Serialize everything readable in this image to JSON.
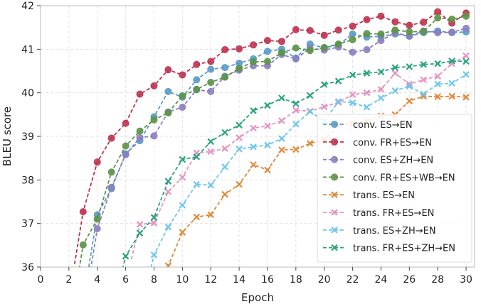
{
  "chart_data": {
    "type": "line",
    "xlabel": "Epoch",
    "ylabel": "BLEU score",
    "xlim": [
      0,
      30.6
    ],
    "ylim": [
      36,
      42
    ],
    "xticks": [
      0,
      2,
      4,
      6,
      8,
      10,
      12,
      14,
      16,
      18,
      20,
      22,
      24,
      26,
      28,
      30
    ],
    "yticks": [
      36,
      37,
      38,
      39,
      40,
      41,
      42
    ],
    "grid": true,
    "legend_position": "lower-right",
    "series": [
      {
        "name": "conv. ES→EN",
        "color": "#5a9bc8",
        "marker": "circle",
        "x": [
          4,
          5,
          6,
          7,
          8,
          9,
          10,
          11,
          12,
          13,
          14,
          15,
          16,
          17,
          18,
          19,
          20,
          21,
          22,
          23,
          24,
          25,
          26,
          27,
          28,
          29,
          30
        ],
        "y": [
          37.2,
          37.8,
          38.6,
          38.9,
          39.45,
          40.03,
          39.9,
          40.3,
          40.54,
          40.58,
          40.68,
          40.78,
          40.95,
          41.0,
          40.8,
          41.12,
          41.03,
          41.1,
          41.35,
          41.28,
          41.3,
          41.35,
          41.3,
          41.38,
          41.42,
          41.38,
          41.4
        ]
      },
      {
        "name": "conv. FR+ES→EN",
        "color": "#c0334f",
        "marker": "circle",
        "x": [
          3,
          4,
          5,
          6,
          7,
          8,
          9,
          10,
          11,
          12,
          13,
          14,
          15,
          16,
          17,
          18,
          19,
          20,
          21,
          22,
          23,
          24,
          25,
          26,
          27,
          28,
          29,
          30
        ],
        "y": [
          37.27,
          38.41,
          38.96,
          39.3,
          39.97,
          40.16,
          40.53,
          40.41,
          40.65,
          40.72,
          40.99,
          41.01,
          41.1,
          41.2,
          41.18,
          41.45,
          41.43,
          41.32,
          41.44,
          41.53,
          41.68,
          41.76,
          41.63,
          41.55,
          41.62,
          41.86,
          41.6,
          41.83
        ]
      },
      {
        "name": "conv. ES+ZH→EN",
        "color": "#8b7fc0",
        "marker": "circle",
        "x": [
          4,
          5,
          6,
          7,
          8,
          9,
          10,
          11,
          12,
          13,
          14,
          15,
          16,
          17,
          18,
          19,
          20,
          21,
          22,
          23,
          24,
          25,
          26,
          27,
          28,
          29,
          30
        ],
        "y": [
          36.88,
          37.83,
          38.58,
          38.97,
          39.01,
          39.56,
          39.67,
          40.07,
          40.03,
          40.38,
          40.52,
          40.62,
          40.62,
          40.88,
          40.78,
          41.02,
          40.98,
          41.05,
          40.93,
          40.99,
          41.2,
          41.38,
          41.3,
          41.42,
          41.38,
          41.39,
          41.48
        ]
      },
      {
        "name": "conv. FR+ES+WB→EN",
        "color": "#5d9448",
        "marker": "circle",
        "x": [
          3,
          4,
          5,
          6,
          7,
          8,
          9,
          10,
          11,
          12,
          13,
          14,
          15,
          16,
          17,
          18,
          19,
          20,
          21,
          22,
          23,
          24,
          25,
          26,
          27,
          28,
          29,
          30
        ],
        "y": [
          36.51,
          37.1,
          38.18,
          38.78,
          39.12,
          39.38,
          39.54,
          39.93,
          40.08,
          40.24,
          40.36,
          40.56,
          40.71,
          40.72,
          40.92,
          41.03,
          40.97,
          41.04,
          41.12,
          41.22,
          41.36,
          41.35,
          41.44,
          41.4,
          41.41,
          41.72,
          41.69,
          41.76
        ]
      },
      {
        "name": "trans. ES→EN",
        "color": "#e08a3c",
        "marker": "x",
        "x": [
          9,
          10,
          11,
          12,
          13,
          14,
          15,
          16,
          17,
          18,
          19,
          20,
          21,
          22,
          23,
          24,
          25,
          26,
          27,
          28,
          29,
          30
        ],
        "y": [
          36.03,
          36.8,
          37.15,
          37.2,
          37.67,
          37.9,
          38.35,
          38.23,
          38.69,
          38.7,
          38.84,
          38.93,
          39.25,
          39.29,
          39.34,
          39.47,
          39.5,
          39.81,
          39.92,
          39.91,
          39.92,
          39.9
        ]
      },
      {
        "name": "trans. FR+ES→EN",
        "color": "#e495c2",
        "marker": "x",
        "x": [
          7,
          8,
          9,
          10,
          11,
          12,
          13,
          14,
          15,
          16,
          17,
          18,
          19,
          20,
          21,
          22,
          23,
          24,
          25,
          26,
          27,
          28,
          29,
          30
        ],
        "y": [
          36.98,
          37.01,
          37.73,
          38.06,
          38.62,
          38.65,
          38.72,
          38.97,
          39.19,
          39.24,
          39.36,
          39.6,
          39.58,
          39.68,
          39.78,
          39.96,
          40.0,
          40.08,
          40.45,
          40.2,
          40.3,
          40.38,
          40.67,
          40.85
        ]
      },
      {
        "name": "trans. ES+ZH→EN",
        "color": "#6fc6ec",
        "marker": "x",
        "x": [
          8,
          9,
          10,
          11,
          12,
          13,
          14,
          15,
          16,
          17,
          18,
          19,
          20,
          21,
          22,
          23,
          24,
          25,
          26,
          27,
          28,
          29,
          30
        ],
        "y": [
          36.28,
          36.92,
          37.42,
          37.9,
          37.88,
          38.3,
          38.71,
          38.76,
          38.8,
          38.95,
          39.28,
          39.57,
          39.35,
          39.8,
          39.77,
          39.67,
          39.88,
          40.05,
          40.15,
          39.97,
          40.2,
          40.22,
          40.42
        ]
      },
      {
        "name": "trans. FR+ES+ZH→EN",
        "color": "#2aa37f",
        "marker": "x",
        "x": [
          6,
          7,
          8,
          9,
          10,
          11,
          12,
          13,
          14,
          15,
          16,
          17,
          18,
          19,
          20,
          21,
          22,
          23,
          24,
          25,
          26,
          27,
          28,
          29,
          30
        ],
        "y": [
          36.25,
          36.78,
          37.14,
          37.97,
          38.47,
          38.53,
          38.88,
          39.09,
          39.26,
          39.59,
          39.71,
          39.88,
          39.75,
          39.94,
          40.19,
          40.27,
          40.41,
          40.45,
          40.48,
          40.58,
          40.6,
          40.65,
          40.67,
          40.73,
          40.72
        ]
      }
    ]
  }
}
